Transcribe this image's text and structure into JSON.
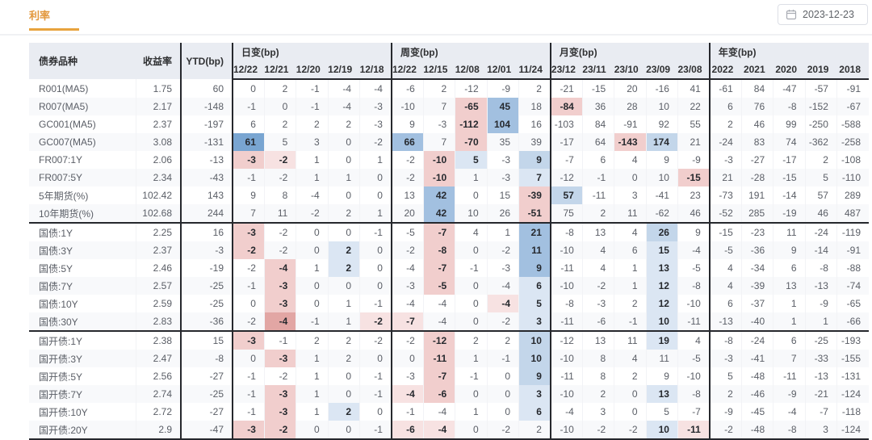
{
  "page": {
    "tab_label": "利率",
    "date_value": "2023-12-23"
  },
  "colors": {
    "accent": "#E8A33D",
    "header_bg": "#E9ECF2",
    "group_border": "#26282D",
    "hl_blue_strong": "#79A5D1",
    "hl_blue": "#A2C0E0",
    "hl_blue_mid": "#C3D6EA",
    "hl_blue_light": "#DBE6F3",
    "hl_pink_light": "#F7E2E2",
    "hl_pink": "#F1CECD",
    "hl_pink_strong": "#E2A6A4"
  },
  "table": {
    "headers": {
      "bond": "债券品种",
      "yield": "收益率",
      "ytd": "YTD(bp)",
      "groups": [
        {
          "label": "日变(bp)",
          "cols": [
            "12/22",
            "12/21",
            "12/20",
            "12/19",
            "12/18"
          ]
        },
        {
          "label": "周变(bp)",
          "cols": [
            "12/22",
            "12/15",
            "12/08",
            "12/01",
            "11/24"
          ]
        },
        {
          "label": "月变(bp)",
          "cols": [
            "23/12",
            "23/11",
            "23/10",
            "23/09",
            "23/08"
          ]
        },
        {
          "label": "年变(bp)",
          "cols": [
            "2022",
            "2021",
            "2020",
            "2019",
            "2018"
          ]
        }
      ]
    },
    "groups": [
      {
        "rows": [
          {
            "name": "R001(MA5)",
            "yield": "1.75",
            "ytd": "60",
            "d": [
              "0",
              "2",
              "-1",
              "-4",
              "-4"
            ],
            "w": [
              "-6",
              "2",
              "-12",
              "-9",
              "2"
            ],
            "m": [
              "-21",
              "-15",
              "20",
              "-16",
              "41"
            ],
            "y": [
              "-61",
              "84",
              "-47",
              "-57",
              "-91"
            ],
            "hl": {}
          },
          {
            "name": "R007(MA5)",
            "yield": "2.17",
            "ytd": "-148",
            "d": [
              "-1",
              "0",
              "-1",
              "-4",
              "-3"
            ],
            "w": [
              "-10",
              "7",
              "-65",
              "45",
              "18"
            ],
            "m": [
              "-84",
              "36",
              "28",
              "10",
              "22"
            ],
            "y": [
              "6",
              "76",
              "-8",
              "-152",
              "-67"
            ],
            "hl": {
              "w2": "p2",
              "w3": "b3",
              "m0": "p2"
            }
          },
          {
            "name": "GC001(MA5)",
            "yield": "2.37",
            "ytd": "-197",
            "d": [
              "6",
              "2",
              "2",
              "2",
              "-3"
            ],
            "w": [
              "9",
              "-3",
              "-112",
              "104",
              "16"
            ],
            "m": [
              "-103",
              "84",
              "-91",
              "92",
              "55"
            ],
            "y": [
              "2",
              "46",
              "99",
              "-250",
              "-588"
            ],
            "hl": {
              "w2": "p2",
              "w3": "b3"
            }
          },
          {
            "name": "GC007(MA5)",
            "yield": "3.08",
            "ytd": "-131",
            "d": [
              "61",
              "5",
              "3",
              "0",
              "-2"
            ],
            "w": [
              "66",
              "7",
              "-70",
              "35",
              "39"
            ],
            "m": [
              "-17",
              "64",
              "-143",
              "174",
              "21"
            ],
            "y": [
              "-24",
              "83",
              "74",
              "-362",
              "-258"
            ],
            "hl": {
              "d0": "b4",
              "w0": "b3",
              "w2": "p2",
              "m2": "p2",
              "m3": "b2"
            }
          },
          {
            "name": "FR007:1Y",
            "yield": "2.06",
            "ytd": "-13",
            "d": [
              "-3",
              "-2",
              "1",
              "0",
              "1"
            ],
            "w": [
              "-2",
              "-10",
              "5",
              "-3",
              "9"
            ],
            "m": [
              "-7",
              "6",
              "4",
              "9",
              "-9"
            ],
            "y": [
              "-3",
              "-27",
              "-17",
              "2",
              "-108"
            ],
            "hl": {
              "d0": "p2",
              "d1": "p1",
              "w1": "p2",
              "w2": "b1",
              "w4": "b2"
            }
          },
          {
            "name": "FR007:5Y",
            "yield": "2.34",
            "ytd": "-43",
            "d": [
              "-1",
              "-2",
              "1",
              "1",
              "0"
            ],
            "w": [
              "-2",
              "-10",
              "1",
              "-3",
              "7"
            ],
            "m": [
              "-12",
              "-1",
              "0",
              "10",
              "-15"
            ],
            "y": [
              "21",
              "-28",
              "-15",
              "5",
              "-110"
            ],
            "hl": {
              "w1": "p2",
              "w4": "b1",
              "m4": "p2"
            }
          },
          {
            "name": "5年期货(%)",
            "yield": "102.42",
            "ytd": "143",
            "d": [
              "9",
              "8",
              "-4",
              "0",
              "0"
            ],
            "w": [
              "13",
              "42",
              "0",
              "15",
              "-39"
            ],
            "m": [
              "57",
              "-11",
              "3",
              "-41",
              "23"
            ],
            "y": [
              "-73",
              "191",
              "-14",
              "57",
              "289"
            ],
            "hl": {
              "w1": "b3",
              "w4": "p2",
              "m0": "b2"
            }
          },
          {
            "name": "10年期货(%)",
            "yield": "102.68",
            "ytd": "244",
            "d": [
              "7",
              "11",
              "-2",
              "2",
              "1"
            ],
            "w": [
              "20",
              "42",
              "10",
              "26",
              "-51"
            ],
            "m": [
              "75",
              "2",
              "11",
              "-62",
              "46"
            ],
            "y": [
              "-52",
              "285",
              "-19",
              "46",
              "487"
            ],
            "hl": {
              "w1": "b3",
              "w4": "p2"
            }
          }
        ]
      },
      {
        "rows": [
          {
            "name": "国债:1Y",
            "yield": "2.25",
            "ytd": "16",
            "d": [
              "-3",
              "-2",
              "0",
              "0",
              "-1"
            ],
            "w": [
              "-5",
              "-7",
              "4",
              "1",
              "21"
            ],
            "m": [
              "-8",
              "13",
              "4",
              "26",
              "9"
            ],
            "y": [
              "-15",
              "-23",
              "11",
              "-24",
              "-119"
            ],
            "hl": {
              "d0": "p2",
              "w1": "p2",
              "w4": "b3",
              "m3": "b2"
            }
          },
          {
            "name": "国债:3Y",
            "yield": "2.37",
            "ytd": "-3",
            "d": [
              "-2",
              "-2",
              "0",
              "2",
              "0"
            ],
            "w": [
              "-2",
              "-8",
              "0",
              "-2",
              "11"
            ],
            "m": [
              "-10",
              "4",
              "6",
              "15",
              "-4"
            ],
            "y": [
              "-5",
              "-36",
              "9",
              "-14",
              "-91"
            ],
            "hl": {
              "d0": "p2",
              "d3": "b1",
              "w1": "p2",
              "w4": "b3",
              "m3": "b1"
            }
          },
          {
            "name": "国债:5Y",
            "yield": "2.46",
            "ytd": "-19",
            "d": [
              "-2",
              "-4",
              "1",
              "2",
              "0"
            ],
            "w": [
              "-4",
              "-7",
              "-1",
              "-3",
              "9"
            ],
            "m": [
              "-11",
              "4",
              "1",
              "13",
              "-5"
            ],
            "y": [
              "4",
              "-34",
              "6",
              "-8",
              "-88"
            ],
            "hl": {
              "d1": "p2",
              "d3": "b1",
              "w1": "p2",
              "w4": "b3",
              "m3": "b1"
            }
          },
          {
            "name": "国债:7Y",
            "yield": "2.57",
            "ytd": "-25",
            "d": [
              "-1",
              "-3",
              "0",
              "0",
              "0"
            ],
            "w": [
              "-3",
              "-5",
              "0",
              "-4",
              "6"
            ],
            "m": [
              "-10",
              "-2",
              "1",
              "12",
              "-8"
            ],
            "y": [
              "4",
              "-39",
              "13",
              "-13",
              "-74"
            ],
            "hl": {
              "d1": "p2",
              "w1": "p2",
              "w4": "b1",
              "m3": "b1"
            }
          },
          {
            "name": "国债:10Y",
            "yield": "2.59",
            "ytd": "-25",
            "d": [
              "0",
              "-3",
              "0",
              "1",
              "-1"
            ],
            "w": [
              "-4",
              "-4",
              "0",
              "-4",
              "5"
            ],
            "m": [
              "-8",
              "-3",
              "2",
              "12",
              "-10"
            ],
            "y": [
              "6",
              "-37",
              "1",
              "-9",
              "-65"
            ],
            "hl": {
              "d1": "p2",
              "w3": "p1",
              "w4": "b1",
              "m3": "b1"
            }
          },
          {
            "name": "国债:30Y",
            "yield": "2.83",
            "ytd": "-36",
            "d": [
              "-2",
              "-4",
              "-1",
              "1",
              "-2"
            ],
            "w": [
              "-7",
              "-4",
              "0",
              "-2",
              "3"
            ],
            "m": [
              "-11",
              "-6",
              "-1",
              "10",
              "-11"
            ],
            "y": [
              "-13",
              "-40",
              "1",
              "1",
              "-66"
            ],
            "hl": {
              "d1": "p3",
              "d4": "p1",
              "w0": "p1",
              "w4": "b1",
              "m3": "b1"
            }
          }
        ]
      },
      {
        "rows": [
          {
            "name": "国开债:1Y",
            "yield": "2.38",
            "ytd": "15",
            "d": [
              "-3",
              "-1",
              "2",
              "2",
              "-2"
            ],
            "w": [
              "-2",
              "-12",
              "2",
              "2",
              "10"
            ],
            "m": [
              "-12",
              "13",
              "11",
              "19",
              "4"
            ],
            "y": [
              "-8",
              "-24",
              "6",
              "-25",
              "-193"
            ],
            "hl": {
              "d0": "p2",
              "w1": "p2",
              "w4": "b2",
              "m3": "b1"
            }
          },
          {
            "name": "国开债:3Y",
            "yield": "2.47",
            "ytd": "-8",
            "d": [
              "0",
              "-3",
              "1",
              "2",
              "0"
            ],
            "w": [
              "0",
              "-11",
              "1",
              "-1",
              "10"
            ],
            "m": [
              "-10",
              "8",
              "4",
              "11",
              "-5"
            ],
            "y": [
              "-3",
              "-41",
              "7",
              "-33",
              "-155"
            ],
            "hl": {
              "d1": "p2",
              "w1": "p2",
              "w4": "b2"
            }
          },
          {
            "name": "国开债:5Y",
            "yield": "2.56",
            "ytd": "-27",
            "d": [
              "-1",
              "-2",
              "1",
              "0",
              "-1"
            ],
            "w": [
              "-3",
              "-7",
              "-1",
              "0",
              "9"
            ],
            "m": [
              "-11",
              "8",
              "2",
              "9",
              "-10"
            ],
            "y": [
              "5",
              "-48",
              "-11",
              "-13",
              "-131"
            ],
            "hl": {
              "w1": "p2",
              "w4": "b2"
            }
          },
          {
            "name": "国开债:7Y",
            "yield": "2.74",
            "ytd": "-25",
            "d": [
              "-1",
              "-3",
              "1",
              "0",
              "-1"
            ],
            "w": [
              "-4",
              "-6",
              "0",
              "0",
              "3"
            ],
            "m": [
              "-10",
              "2",
              "0",
              "13",
              "-8"
            ],
            "y": [
              "2",
              "-46",
              "-9",
              "-21",
              "-124"
            ],
            "hl": {
              "d1": "p2",
              "w0": "p1",
              "w1": "p2",
              "w4": "b1",
              "m3": "b1"
            }
          },
          {
            "name": "国开债:10Y",
            "yield": "2.72",
            "ytd": "-27",
            "d": [
              "-1",
              "-3",
              "1",
              "2",
              "0"
            ],
            "w": [
              "-1",
              "-4",
              "1",
              "0",
              "6"
            ],
            "m": [
              "-4",
              "3",
              "0",
              "5",
              "-7"
            ],
            "y": [
              "-9",
              "-45",
              "-4",
              "-7",
              "-118"
            ],
            "hl": {
              "d1": "p2",
              "d3": "b1",
              "w4": "b1"
            }
          },
          {
            "name": "国开债:20Y",
            "yield": "2.9",
            "ytd": "-47",
            "d": [
              "-3",
              "-2",
              "0",
              "0",
              "-1"
            ],
            "w": [
              "-6",
              "-4",
              "0",
              "-2",
              "2"
            ],
            "m": [
              "-10",
              "-2",
              "-2",
              "10",
              "-11"
            ],
            "y": [
              "-2",
              "-48",
              "-8",
              "3",
              "-124"
            ],
            "hl": {
              "d0": "p2",
              "d1": "p2",
              "w0": "p1",
              "w1": "p1",
              "m3": "b1",
              "m4": "p1"
            }
          }
        ]
      }
    ]
  }
}
